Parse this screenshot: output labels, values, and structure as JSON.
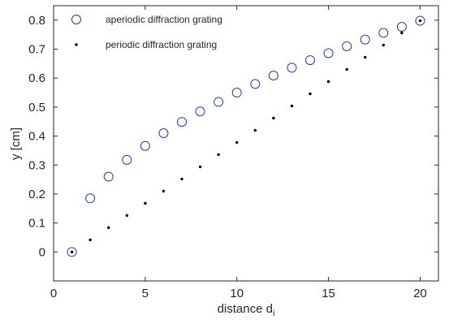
{
  "chart_data": {
    "type": "scatter",
    "xlabel": "distance d",
    "xlabel_subscript": "i",
    "ylabel": "y [cm]",
    "xlim": [
      0,
      21
    ],
    "ylim": [
      -0.1,
      0.85
    ],
    "x_ticks": [
      0,
      5,
      10,
      15,
      20
    ],
    "x_tick_labels": [
      "0",
      "5",
      "10",
      "15",
      "20"
    ],
    "y_ticks": [
      0,
      0.1,
      0.2,
      0.3,
      0.4,
      0.5,
      0.6,
      0.7,
      0.8
    ],
    "y_tick_labels": [
      "0",
      "0.1",
      "0.2",
      "0.3",
      "0.4",
      "0.5",
      "0.6",
      "0.7",
      "0.8"
    ],
    "grid": false,
    "legend_position": "top-left",
    "series": [
      {
        "name": "aperiodic diffraction grating",
        "marker": "open-circle",
        "color": "#2040a0",
        "x": [
          1,
          2,
          3,
          4,
          5,
          6,
          7,
          8,
          9,
          10,
          11,
          12,
          13,
          14,
          15,
          16,
          17,
          18,
          19,
          20
        ],
        "y": [
          0.0,
          0.185,
          0.26,
          0.318,
          0.366,
          0.41,
          0.449,
          0.485,
          0.518,
          0.55,
          0.58,
          0.609,
          0.636,
          0.662,
          0.686,
          0.71,
          0.733,
          0.756,
          0.777,
          0.798
        ]
      },
      {
        "name": "periodic diffraction grating",
        "marker": "dot",
        "color": "#000000",
        "x": [
          1,
          2,
          3,
          4,
          5,
          6,
          7,
          8,
          9,
          10,
          11,
          12,
          13,
          14,
          15,
          16,
          17,
          18,
          19,
          20
        ],
        "y": [
          0.0,
          0.042,
          0.084,
          0.126,
          0.168,
          0.21,
          0.252,
          0.294,
          0.336,
          0.378,
          0.42,
          0.462,
          0.504,
          0.546,
          0.588,
          0.63,
          0.672,
          0.714,
          0.756,
          0.798
        ]
      }
    ]
  }
}
